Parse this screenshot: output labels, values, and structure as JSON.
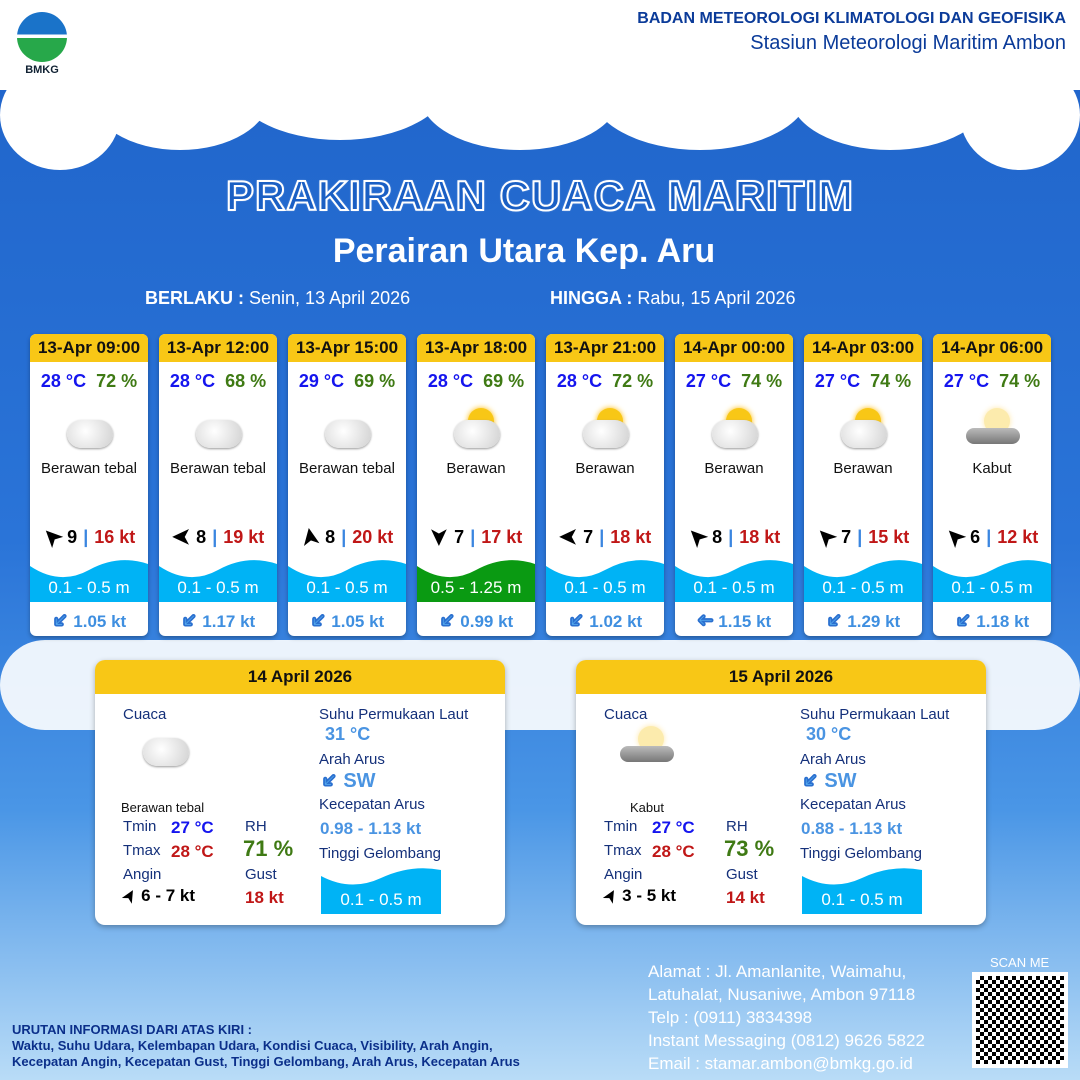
{
  "header": {
    "logo_text": "BMKG",
    "org": "BADAN METEOROLOGI KLIMATOLOGI DAN GEOFISIKA",
    "station": "Stasiun Meteorologi Maritim Ambon"
  },
  "title": "PRAKIRAAN CUACA MARITIM",
  "area": "Perairan Utara Kep. Aru",
  "valid": {
    "from_label": "BERLAKU :",
    "from": "Senin, 13 April 2026",
    "to_label": "HINGGA :",
    "to": "Rabu, 15 April 2026"
  },
  "cards": [
    {
      "time": "13-Apr 09:00",
      "temp": "28 °C",
      "rh": "72 %",
      "icon": "cloudy-icon",
      "weather": "Berawan tebal",
      "wind_dir_deg": 225,
      "wind": "9",
      "gust": "16 kt",
      "wave": "0.1 - 0.5 m",
      "wave_color": "#00b3f5",
      "current_dir_deg": 135,
      "current": "1.05 kt"
    },
    {
      "time": "13-Apr 12:00",
      "temp": "28 °C",
      "rh": "68 %",
      "icon": "cloudy-icon",
      "weather": "Berawan tebal",
      "wind_dir_deg": 180,
      "wind": "8",
      "gust": "19 kt",
      "wave": "0.1 - 0.5 m",
      "wave_color": "#00b3f5",
      "current_dir_deg": 135,
      "current": "1.17 kt"
    },
    {
      "time": "13-Apr 15:00",
      "temp": "29 °C",
      "rh": "69 %",
      "icon": "cloudy-icon",
      "weather": "Berawan tebal",
      "wind_dir_deg": -100,
      "wind": "8",
      "gust": "20 kt",
      "wave": "0.1 - 0.5 m",
      "wave_color": "#00b3f5",
      "current_dir_deg": 135,
      "current": "1.05 kt"
    },
    {
      "time": "13-Apr 18:00",
      "temp": "28 °C",
      "rh": "69 %",
      "icon": "partly-cloudy-icon",
      "weather": "Berawan",
      "wind_dir_deg": 90,
      "wind": "7",
      "gust": "17 kt",
      "wave": "0.5 - 1.25 m",
      "wave_color": "#0a9a12",
      "current_dir_deg": 135,
      "current": "0.99 kt"
    },
    {
      "time": "13-Apr 21:00",
      "temp": "28 °C",
      "rh": "72 %",
      "icon": "partly-cloudy-icon",
      "weather": "Berawan",
      "wind_dir_deg": 180,
      "wind": "7",
      "gust": "18 kt",
      "wave": "0.1 - 0.5 m",
      "wave_color": "#00b3f5",
      "current_dir_deg": 135,
      "current": "1.02 kt"
    },
    {
      "time": "14-Apr 00:00",
      "temp": "27 °C",
      "rh": "74 %",
      "icon": "partly-cloudy-icon",
      "weather": "Berawan",
      "wind_dir_deg": 225,
      "wind": "8",
      "gust": "18 kt",
      "wave": "0.1 - 0.5 m",
      "wave_color": "#00b3f5",
      "current_dir_deg": 180,
      "current": "1.15 kt"
    },
    {
      "time": "14-Apr 03:00",
      "temp": "27 °C",
      "rh": "74 %",
      "icon": "partly-cloudy-icon",
      "weather": "Berawan",
      "wind_dir_deg": 225,
      "wind": "7",
      "gust": "15 kt",
      "wave": "0.1 - 0.5 m",
      "wave_color": "#00b3f5",
      "current_dir_deg": 135,
      "current": "1.29 kt"
    },
    {
      "time": "14-Apr 06:00",
      "temp": "27 °C",
      "rh": "74 %",
      "icon": "fog-icon",
      "weather": "Kabut",
      "wind_dir_deg": 225,
      "wind": "6",
      "gust": "12 kt",
      "wave": "0.1 - 0.5 m",
      "wave_color": "#00b3f5",
      "current_dir_deg": 135,
      "current": "1.18 kt"
    }
  ],
  "labels": {
    "cuaca": "Cuaca",
    "sst": "Suhu Permukaan Laut",
    "arah": "Arah Arus",
    "kec": "Kecepatan Arus",
    "tinggi": "Tinggi Gelombang",
    "tmin": "Tmin",
    "tmax": "Tmax",
    "rh": "RH",
    "angin": "Angin",
    "gust": "Gust"
  },
  "daily": [
    {
      "date": "14 April 2026",
      "icon": "cloudy-icon",
      "weather": "Berawan tebal",
      "tmin": "27 °C",
      "tmax": "28 °C",
      "rh": "71 %",
      "wind": "6  - 7 kt",
      "gust": "18 kt",
      "sst": "31 °C",
      "current_dir": "SW",
      "current_speed": "0.98  - 1.13 kt",
      "wave": "0.1 - 0.5 m"
    },
    {
      "date": "15 April 2026",
      "icon": "fog-icon",
      "weather": "Kabut",
      "tmin": "27 °C",
      "tmax": "28 °C",
      "rh": "73 %",
      "wind": "3  - 5 kt",
      "gust": "14 kt",
      "sst": "30 °C",
      "current_dir": "SW",
      "current_speed": "0.88  - 1.13 kt",
      "wave": "0.1 - 0.5 m"
    }
  ],
  "footer": {
    "title": "URUTAN INFORMASI DARI ATAS KIRI :",
    "line1": "Waktu, Suhu Udara, Kelembapan Udara, Kondisi Cuaca, Visibility, Arah Angin,",
    "line2": "Kecepatan Angin, Kecepatan Gust, Tinggi Gelombang, Arah Arus, Kecepatan Arus"
  },
  "contact": {
    "alamat": "Alamat : Jl. Amanlanite, Waimahu,",
    "alamat2": "Latuhalat, Nusaniwe, Ambon 97118",
    "telp": "Telp      : (0911) 3834398",
    "im": "Instant Messaging (0812) 9626 5822",
    "email": "Email     : stamar.ambon@bmkg.go.id",
    "scan": "SCAN ME"
  }
}
